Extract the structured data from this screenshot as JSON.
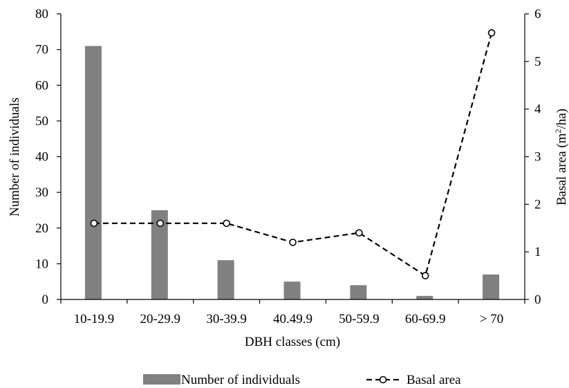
{
  "chart_data": {
    "type": "bar",
    "categories": [
      "10-19.9",
      "20-29.9",
      "30-39.9",
      "40.49.9",
      "50-59.9",
      "60-69.9",
      "> 70"
    ],
    "xlabel": "DBH classes (cm)",
    "ylabel": "Number of individuals",
    "ylabel_right_main": "Basal area (m",
    "ylabel_right_sup": "2",
    "ylabel_right_tail": "/ha)",
    "ylim": [
      0,
      80
    ],
    "ylim_right": [
      0,
      6
    ],
    "yticks": [
      0,
      10,
      20,
      30,
      40,
      50,
      60,
      70,
      80
    ],
    "yticks_right": [
      0,
      1,
      2,
      3,
      4,
      5,
      6
    ],
    "grid": false,
    "legend_position": "bottom-center",
    "series": [
      {
        "name": "Number of individuals",
        "type": "bar",
        "axis": "left",
        "color": "#808080",
        "values": [
          71,
          25,
          11,
          5,
          4,
          1,
          7
        ]
      },
      {
        "name": "Basal area",
        "type": "line",
        "axis": "right",
        "color": "#000000",
        "line_style": "dashed",
        "marker": "open-circle",
        "values": [
          1.6,
          1.6,
          1.6,
          1.2,
          1.4,
          0.5,
          5.6
        ]
      }
    ]
  }
}
